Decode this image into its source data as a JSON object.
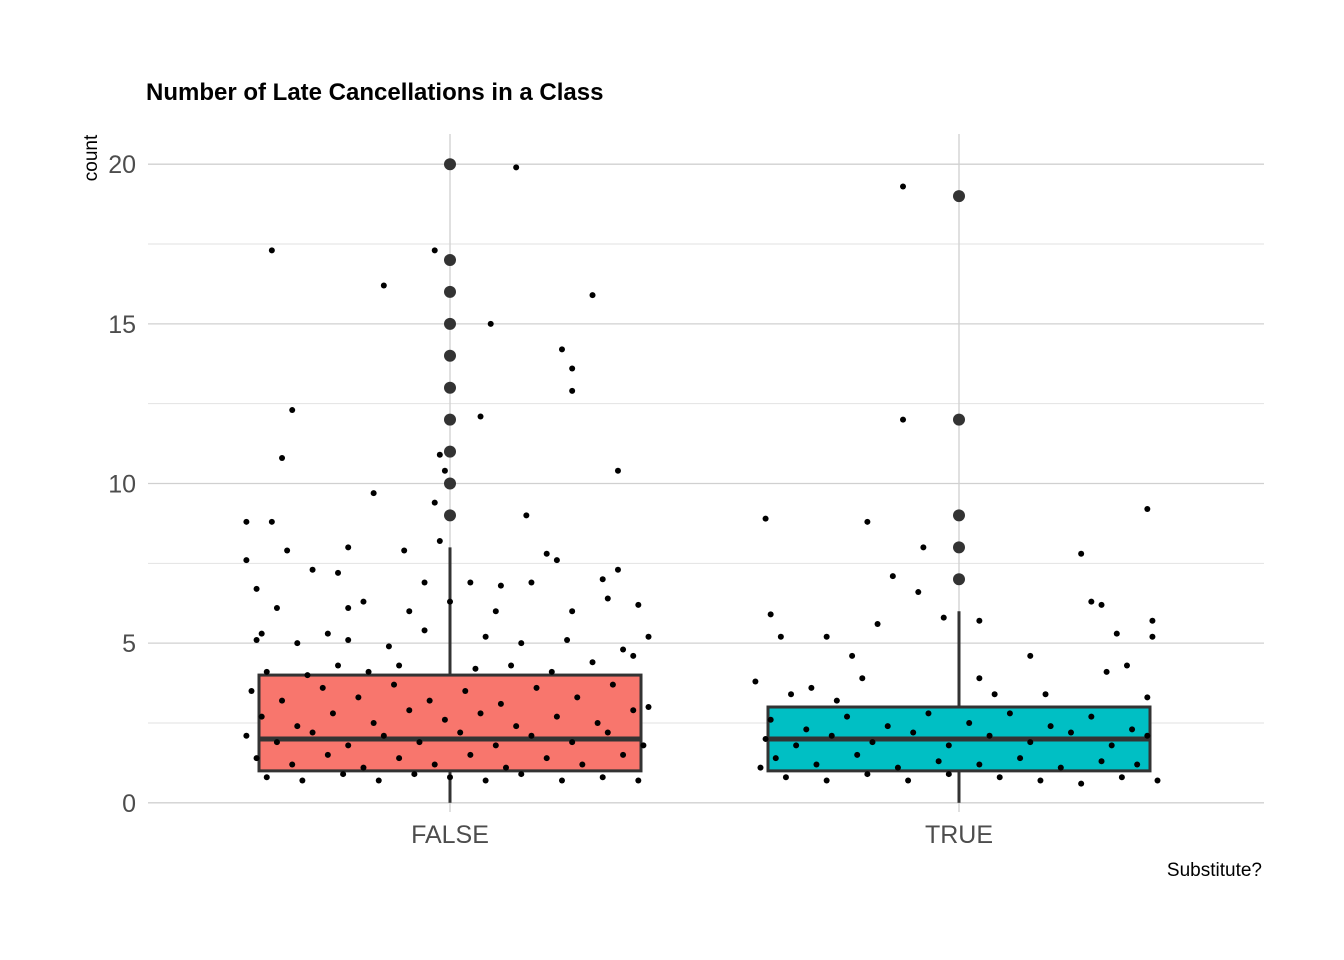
{
  "chart_data": {
    "type": "boxplot",
    "title": "Number of Late Cancellations in a Class",
    "xlabel": "Substitute?",
    "ylabel": "count",
    "ylim": [
      -0.8,
      21
    ],
    "yticks": [
      0,
      5,
      10,
      15,
      20
    ],
    "grid": true,
    "legend": "none",
    "categories": [
      "FALSE",
      "TRUE"
    ],
    "boxes": [
      {
        "category": "FALSE",
        "color": "#F8766D",
        "q1": 1,
        "median": 2,
        "q3": 4,
        "whisker_low": 0,
        "whisker_high": 8,
        "outliers": [
          9,
          10,
          11,
          12,
          13,
          14,
          15,
          16,
          17,
          20
        ]
      },
      {
        "category": "TRUE",
        "color": "#00BFC4",
        "q1": 1,
        "median": 2,
        "q3": 3,
        "whisker_low": 0,
        "whisker_high": 6,
        "outliers": [
          7,
          8,
          9,
          12,
          19
        ]
      }
    ],
    "jitter_points": [
      {
        "category": "FALSE",
        "x_offset": -0.35,
        "y": 17.3
      },
      {
        "category": "FALSE",
        "x_offset": -0.31,
        "y": 12.3
      },
      {
        "category": "FALSE",
        "x_offset": -0.33,
        "y": 10.8
      },
      {
        "category": "FALSE",
        "x_offset": -0.13,
        "y": 16.2
      },
      {
        "category": "FALSE",
        "x_offset": -0.03,
        "y": 17.3
      },
      {
        "category": "FALSE",
        "x_offset": 0.13,
        "y": 19.9
      },
      {
        "category": "FALSE",
        "x_offset": 0.08,
        "y": 15.0
      },
      {
        "category": "FALSE",
        "x_offset": 0.06,
        "y": 12.1
      },
      {
        "category": "FALSE",
        "x_offset": 0.22,
        "y": 14.2
      },
      {
        "category": "FALSE",
        "x_offset": 0.24,
        "y": 13.6
      },
      {
        "category": "FALSE",
        "x_offset": 0.24,
        "y": 12.9
      },
      {
        "category": "FALSE",
        "x_offset": 0.28,
        "y": 15.9
      },
      {
        "category": "FALSE",
        "x_offset": 0.33,
        "y": 10.4
      },
      {
        "category": "FALSE",
        "x_offset": -0.02,
        "y": 10.9
      },
      {
        "category": "FALSE",
        "x_offset": -0.01,
        "y": 10.4
      },
      {
        "category": "FALSE",
        "x_offset": -0.03,
        "y": 9.4
      },
      {
        "category": "FALSE",
        "x_offset": -0.15,
        "y": 9.7
      },
      {
        "category": "FALSE",
        "x_offset": 0.15,
        "y": 9.0
      },
      {
        "category": "FALSE",
        "x_offset": -0.4,
        "y": 8.8
      },
      {
        "category": "FALSE",
        "x_offset": -0.35,
        "y": 8.8
      },
      {
        "category": "FALSE",
        "x_offset": -0.32,
        "y": 7.9
      },
      {
        "category": "FALSE",
        "x_offset": -0.27,
        "y": 7.3
      },
      {
        "category": "FALSE",
        "x_offset": -0.22,
        "y": 7.2
      },
      {
        "category": "FALSE",
        "x_offset": -0.2,
        "y": 8.0
      },
      {
        "category": "FALSE",
        "x_offset": -0.09,
        "y": 7.9
      },
      {
        "category": "FALSE",
        "x_offset": -0.02,
        "y": 8.2
      },
      {
        "category": "FALSE",
        "x_offset": 0.19,
        "y": 7.8
      },
      {
        "category": "FALSE",
        "x_offset": 0.21,
        "y": 7.6
      },
      {
        "category": "FALSE",
        "x_offset": 0.33,
        "y": 7.3
      },
      {
        "category": "FALSE",
        "x_offset": -0.4,
        "y": 7.6
      },
      {
        "category": "FALSE",
        "x_offset": -0.38,
        "y": 6.7
      },
      {
        "category": "FALSE",
        "x_offset": -0.34,
        "y": 6.1
      },
      {
        "category": "FALSE",
        "x_offset": -0.17,
        "y": 6.3
      },
      {
        "category": "FALSE",
        "x_offset": -0.05,
        "y": 6.9
      },
      {
        "category": "FALSE",
        "x_offset": 0.04,
        "y": 6.9
      },
      {
        "category": "FALSE",
        "x_offset": 0.1,
        "y": 6.8
      },
      {
        "category": "FALSE",
        "x_offset": 0.16,
        "y": 6.9
      },
      {
        "category": "FALSE",
        "x_offset": 0.3,
        "y": 7.0
      },
      {
        "category": "FALSE",
        "x_offset": 0.31,
        "y": 6.4
      },
      {
        "category": "FALSE",
        "x_offset": 0.37,
        "y": 6.2
      },
      {
        "category": "FALSE",
        "x_offset": -0.2,
        "y": 6.1
      },
      {
        "category": "FALSE",
        "x_offset": -0.08,
        "y": 6.0
      },
      {
        "category": "FALSE",
        "x_offset": 0.0,
        "y": 6.3
      },
      {
        "category": "FALSE",
        "x_offset": 0.09,
        "y": 6.0
      },
      {
        "category": "FALSE",
        "x_offset": 0.24,
        "y": 6.0
      },
      {
        "category": "FALSE",
        "x_offset": -0.38,
        "y": 5.1
      },
      {
        "category": "FALSE",
        "x_offset": -0.37,
        "y": 5.3
      },
      {
        "category": "FALSE",
        "x_offset": -0.3,
        "y": 5.0
      },
      {
        "category": "FALSE",
        "x_offset": -0.24,
        "y": 5.3
      },
      {
        "category": "FALSE",
        "x_offset": -0.2,
        "y": 5.1
      },
      {
        "category": "FALSE",
        "x_offset": -0.12,
        "y": 4.9
      },
      {
        "category": "FALSE",
        "x_offset": -0.05,
        "y": 5.4
      },
      {
        "category": "FALSE",
        "x_offset": 0.07,
        "y": 5.2
      },
      {
        "category": "FALSE",
        "x_offset": 0.14,
        "y": 5.0
      },
      {
        "category": "FALSE",
        "x_offset": 0.23,
        "y": 5.1
      },
      {
        "category": "FALSE",
        "x_offset": 0.34,
        "y": 4.8
      },
      {
        "category": "FALSE",
        "x_offset": 0.39,
        "y": 5.2
      },
      {
        "category": "FALSE",
        "x_offset": -0.36,
        "y": 4.1
      },
      {
        "category": "FALSE",
        "x_offset": -0.28,
        "y": 4.0
      },
      {
        "category": "FALSE",
        "x_offset": -0.22,
        "y": 4.3
      },
      {
        "category": "FALSE",
        "x_offset": -0.16,
        "y": 4.1
      },
      {
        "category": "FALSE",
        "x_offset": -0.1,
        "y": 4.3
      },
      {
        "category": "FALSE",
        "x_offset": 0.05,
        "y": 4.2
      },
      {
        "category": "FALSE",
        "x_offset": 0.12,
        "y": 4.3
      },
      {
        "category": "FALSE",
        "x_offset": 0.2,
        "y": 4.1
      },
      {
        "category": "FALSE",
        "x_offset": 0.28,
        "y": 4.4
      },
      {
        "category": "FALSE",
        "x_offset": 0.36,
        "y": 4.6
      },
      {
        "category": "FALSE",
        "x_offset": -0.39,
        "y": 3.5
      },
      {
        "category": "FALSE",
        "x_offset": -0.33,
        "y": 3.2
      },
      {
        "category": "FALSE",
        "x_offset": -0.25,
        "y": 3.6
      },
      {
        "category": "FALSE",
        "x_offset": -0.18,
        "y": 3.3
      },
      {
        "category": "FALSE",
        "x_offset": -0.11,
        "y": 3.7
      },
      {
        "category": "FALSE",
        "x_offset": -0.04,
        "y": 3.2
      },
      {
        "category": "FALSE",
        "x_offset": 0.03,
        "y": 3.5
      },
      {
        "category": "FALSE",
        "x_offset": 0.1,
        "y": 3.1
      },
      {
        "category": "FALSE",
        "x_offset": 0.17,
        "y": 3.6
      },
      {
        "category": "FALSE",
        "x_offset": 0.25,
        "y": 3.3
      },
      {
        "category": "FALSE",
        "x_offset": 0.32,
        "y": 3.7
      },
      {
        "category": "FALSE",
        "x_offset": 0.39,
        "y": 3.0
      },
      {
        "category": "FALSE",
        "x_offset": -0.37,
        "y": 2.7
      },
      {
        "category": "FALSE",
        "x_offset": -0.3,
        "y": 2.4
      },
      {
        "category": "FALSE",
        "x_offset": -0.23,
        "y": 2.8
      },
      {
        "category": "FALSE",
        "x_offset": -0.15,
        "y": 2.5
      },
      {
        "category": "FALSE",
        "x_offset": -0.08,
        "y": 2.9
      },
      {
        "category": "FALSE",
        "x_offset": -0.01,
        "y": 2.6
      },
      {
        "category": "FALSE",
        "x_offset": 0.06,
        "y": 2.8
      },
      {
        "category": "FALSE",
        "x_offset": 0.13,
        "y": 2.4
      },
      {
        "category": "FALSE",
        "x_offset": 0.21,
        "y": 2.7
      },
      {
        "category": "FALSE",
        "x_offset": 0.29,
        "y": 2.5
      },
      {
        "category": "FALSE",
        "x_offset": 0.36,
        "y": 2.9
      },
      {
        "category": "FALSE",
        "x_offset": -0.4,
        "y": 2.1
      },
      {
        "category": "FALSE",
        "x_offset": -0.34,
        "y": 1.9
      },
      {
        "category": "FALSE",
        "x_offset": -0.27,
        "y": 2.2
      },
      {
        "category": "FALSE",
        "x_offset": -0.2,
        "y": 1.8
      },
      {
        "category": "FALSE",
        "x_offset": -0.13,
        "y": 2.1
      },
      {
        "category": "FALSE",
        "x_offset": -0.06,
        "y": 1.9
      },
      {
        "category": "FALSE",
        "x_offset": 0.02,
        "y": 2.2
      },
      {
        "category": "FALSE",
        "x_offset": 0.09,
        "y": 1.8
      },
      {
        "category": "FALSE",
        "x_offset": 0.16,
        "y": 2.1
      },
      {
        "category": "FALSE",
        "x_offset": 0.24,
        "y": 1.9
      },
      {
        "category": "FALSE",
        "x_offset": 0.31,
        "y": 2.2
      },
      {
        "category": "FALSE",
        "x_offset": 0.38,
        "y": 1.8
      },
      {
        "category": "FALSE",
        "x_offset": -0.38,
        "y": 1.4
      },
      {
        "category": "FALSE",
        "x_offset": -0.31,
        "y": 1.2
      },
      {
        "category": "FALSE",
        "x_offset": -0.24,
        "y": 1.5
      },
      {
        "category": "FALSE",
        "x_offset": -0.17,
        "y": 1.1
      },
      {
        "category": "FALSE",
        "x_offset": -0.1,
        "y": 1.4
      },
      {
        "category": "FALSE",
        "x_offset": -0.03,
        "y": 1.2
      },
      {
        "category": "FALSE",
        "x_offset": 0.04,
        "y": 1.5
      },
      {
        "category": "FALSE",
        "x_offset": 0.11,
        "y": 1.1
      },
      {
        "category": "FALSE",
        "x_offset": 0.19,
        "y": 1.4
      },
      {
        "category": "FALSE",
        "x_offset": 0.26,
        "y": 1.2
      },
      {
        "category": "FALSE",
        "x_offset": 0.34,
        "y": 1.5
      },
      {
        "category": "FALSE",
        "x_offset": -0.36,
        "y": 0.8
      },
      {
        "category": "FALSE",
        "x_offset": -0.29,
        "y": 0.7
      },
      {
        "category": "FALSE",
        "x_offset": -0.21,
        "y": 0.9
      },
      {
        "category": "FALSE",
        "x_offset": -0.14,
        "y": 0.7
      },
      {
        "category": "FALSE",
        "x_offset": -0.07,
        "y": 0.9
      },
      {
        "category": "FALSE",
        "x_offset": 0.0,
        "y": 0.8
      },
      {
        "category": "FALSE",
        "x_offset": 0.07,
        "y": 0.7
      },
      {
        "category": "FALSE",
        "x_offset": 0.14,
        "y": 0.9
      },
      {
        "category": "FALSE",
        "x_offset": 0.22,
        "y": 0.7
      },
      {
        "category": "FALSE",
        "x_offset": 0.3,
        "y": 0.8
      },
      {
        "category": "FALSE",
        "x_offset": 0.37,
        "y": 0.7
      },
      {
        "category": "TRUE",
        "x_offset": -0.38,
        "y": 8.9
      },
      {
        "category": "TRUE",
        "x_offset": -0.18,
        "y": 8.8
      },
      {
        "category": "TRUE",
        "x_offset": -0.13,
        "y": 7.1
      },
      {
        "category": "TRUE",
        "x_offset": -0.07,
        "y": 8.0
      },
      {
        "category": "TRUE",
        "x_offset": -0.11,
        "y": 19.3
      },
      {
        "category": "TRUE",
        "x_offset": -0.11,
        "y": 12.0
      },
      {
        "category": "TRUE",
        "x_offset": 0.24,
        "y": 7.8
      },
      {
        "category": "TRUE",
        "x_offset": 0.37,
        "y": 9.2
      },
      {
        "category": "TRUE",
        "x_offset": -0.37,
        "y": 5.9
      },
      {
        "category": "TRUE",
        "x_offset": -0.35,
        "y": 5.2
      },
      {
        "category": "TRUE",
        "x_offset": -0.26,
        "y": 5.2
      },
      {
        "category": "TRUE",
        "x_offset": -0.21,
        "y": 4.6
      },
      {
        "category": "TRUE",
        "x_offset": -0.16,
        "y": 5.6
      },
      {
        "category": "TRUE",
        "x_offset": -0.08,
        "y": 6.6
      },
      {
        "category": "TRUE",
        "x_offset": -0.03,
        "y": 5.8
      },
      {
        "category": "TRUE",
        "x_offset": 0.04,
        "y": 5.7
      },
      {
        "category": "TRUE",
        "x_offset": 0.14,
        "y": 4.6
      },
      {
        "category": "TRUE",
        "x_offset": 0.26,
        "y": 6.3
      },
      {
        "category": "TRUE",
        "x_offset": 0.28,
        "y": 6.2
      },
      {
        "category": "TRUE",
        "x_offset": 0.31,
        "y": 5.3
      },
      {
        "category": "TRUE",
        "x_offset": 0.38,
        "y": 5.7
      },
      {
        "category": "TRUE",
        "x_offset": 0.38,
        "y": 5.2
      },
      {
        "category": "TRUE",
        "x_offset": -0.4,
        "y": 3.8
      },
      {
        "category": "TRUE",
        "x_offset": -0.33,
        "y": 3.4
      },
      {
        "category": "TRUE",
        "x_offset": -0.29,
        "y": 3.6
      },
      {
        "category": "TRUE",
        "x_offset": -0.24,
        "y": 3.2
      },
      {
        "category": "TRUE",
        "x_offset": -0.19,
        "y": 3.9
      },
      {
        "category": "TRUE",
        "x_offset": 0.04,
        "y": 3.9
      },
      {
        "category": "TRUE",
        "x_offset": 0.07,
        "y": 3.4
      },
      {
        "category": "TRUE",
        "x_offset": 0.17,
        "y": 3.4
      },
      {
        "category": "TRUE",
        "x_offset": 0.29,
        "y": 4.1
      },
      {
        "category": "TRUE",
        "x_offset": 0.33,
        "y": 4.3
      },
      {
        "category": "TRUE",
        "x_offset": 0.37,
        "y": 3.3
      },
      {
        "category": "TRUE",
        "x_offset": -0.37,
        "y": 2.6
      },
      {
        "category": "TRUE",
        "x_offset": -0.3,
        "y": 2.3
      },
      {
        "category": "TRUE",
        "x_offset": -0.22,
        "y": 2.7
      },
      {
        "category": "TRUE",
        "x_offset": -0.14,
        "y": 2.4
      },
      {
        "category": "TRUE",
        "x_offset": -0.06,
        "y": 2.8
      },
      {
        "category": "TRUE",
        "x_offset": 0.02,
        "y": 2.5
      },
      {
        "category": "TRUE",
        "x_offset": 0.1,
        "y": 2.8
      },
      {
        "category": "TRUE",
        "x_offset": 0.18,
        "y": 2.4
      },
      {
        "category": "TRUE",
        "x_offset": 0.26,
        "y": 2.7
      },
      {
        "category": "TRUE",
        "x_offset": 0.34,
        "y": 2.3
      },
      {
        "category": "TRUE",
        "x_offset": -0.38,
        "y": 2.0
      },
      {
        "category": "TRUE",
        "x_offset": -0.32,
        "y": 1.8
      },
      {
        "category": "TRUE",
        "x_offset": -0.25,
        "y": 2.1
      },
      {
        "category": "TRUE",
        "x_offset": -0.17,
        "y": 1.9
      },
      {
        "category": "TRUE",
        "x_offset": -0.09,
        "y": 2.2
      },
      {
        "category": "TRUE",
        "x_offset": -0.02,
        "y": 1.8
      },
      {
        "category": "TRUE",
        "x_offset": 0.06,
        "y": 2.1
      },
      {
        "category": "TRUE",
        "x_offset": 0.14,
        "y": 1.9
      },
      {
        "category": "TRUE",
        "x_offset": 0.22,
        "y": 2.2
      },
      {
        "category": "TRUE",
        "x_offset": 0.3,
        "y": 1.8
      },
      {
        "category": "TRUE",
        "x_offset": 0.37,
        "y": 2.1
      },
      {
        "category": "TRUE",
        "x_offset": -0.36,
        "y": 1.4
      },
      {
        "category": "TRUE",
        "x_offset": -0.28,
        "y": 1.2
      },
      {
        "category": "TRUE",
        "x_offset": -0.2,
        "y": 1.5
      },
      {
        "category": "TRUE",
        "x_offset": -0.12,
        "y": 1.1
      },
      {
        "category": "TRUE",
        "x_offset": -0.04,
        "y": 1.3
      },
      {
        "category": "TRUE",
        "x_offset": 0.04,
        "y": 1.2
      },
      {
        "category": "TRUE",
        "x_offset": 0.12,
        "y": 1.4
      },
      {
        "category": "TRUE",
        "x_offset": 0.2,
        "y": 1.1
      },
      {
        "category": "TRUE",
        "x_offset": 0.28,
        "y": 1.3
      },
      {
        "category": "TRUE",
        "x_offset": 0.35,
        "y": 1.2
      },
      {
        "category": "TRUE",
        "x_offset": -0.39,
        "y": 1.1
      },
      {
        "category": "TRUE",
        "x_offset": -0.34,
        "y": 0.8
      },
      {
        "category": "TRUE",
        "x_offset": -0.26,
        "y": 0.7
      },
      {
        "category": "TRUE",
        "x_offset": -0.18,
        "y": 0.9
      },
      {
        "category": "TRUE",
        "x_offset": -0.1,
        "y": 0.7
      },
      {
        "category": "TRUE",
        "x_offset": -0.02,
        "y": 0.9
      },
      {
        "category": "TRUE",
        "x_offset": 0.08,
        "y": 0.8
      },
      {
        "category": "TRUE",
        "x_offset": 0.16,
        "y": 0.7
      },
      {
        "category": "TRUE",
        "x_offset": 0.24,
        "y": 0.6
      },
      {
        "category": "TRUE",
        "x_offset": 0.32,
        "y": 0.8
      },
      {
        "category": "TRUE",
        "x_offset": 0.39,
        "y": 0.7
      }
    ]
  }
}
